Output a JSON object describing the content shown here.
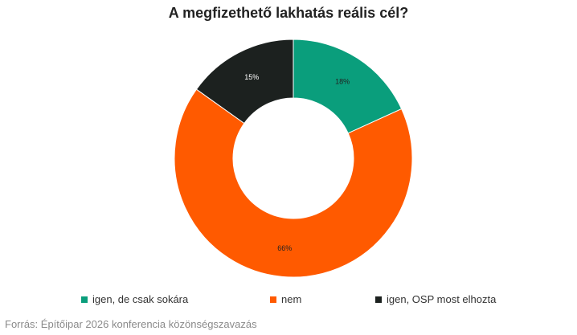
{
  "chart_data": {
    "type": "pie",
    "title": "A megfizethető lakhatás reális cél?",
    "donut": true,
    "labels": [
      "igen, de csak sokára",
      "nem",
      "igen, OSP most elhozta"
    ],
    "values": [
      18,
      66,
      15
    ],
    "value_labels": [
      "18%",
      "66%",
      "15%"
    ],
    "colors": [
      "#0a9e7c",
      "#ff5a00",
      "#1c211f"
    ],
    "legend_position": "bottom"
  },
  "source": "Forrás: Építőipar 2026 konferencia közönségszavazás"
}
